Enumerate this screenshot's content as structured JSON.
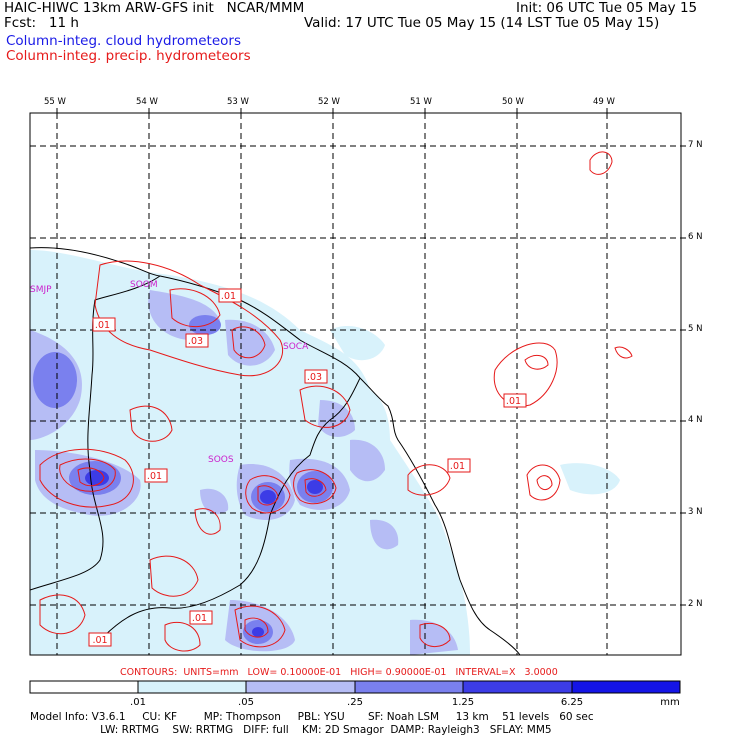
{
  "header": {
    "left_line1": "HAIC-HIWC 13km ARW-GFS init   NCAR/MMM",
    "left_line2": "Fcst:   11 h",
    "right_line1": "Init: 06 UTC Tue 05 May 15",
    "right_line2": "Valid: 17 UTC Tue 05 May 15 (14 LST Tue 05 May 15)",
    "legend_blue": "Column-integ. cloud hydrometeors",
    "legend_red": "Column-integ. precip. hydrometeors"
  },
  "colors": {
    "cloud_blue": "#1a1ae6",
    "precip_red": "#e61a1a",
    "fill_levels": [
      "#ffffff",
      "#d8f2fb",
      "#b6bdf5",
      "#7a80ee",
      "#3c3ce6",
      "#1414e6"
    ]
  },
  "map": {
    "lon_labels": [
      "55 W",
      "54 W",
      "53 W",
      "52 W",
      "51 W",
      "50 W",
      "49 W"
    ],
    "lat_labels": [
      "7 N",
      "6 N",
      "5 N",
      "4 N",
      "3 N",
      "2 N"
    ],
    "stations": [
      "SMJP",
      "SOOM",
      "SOCA",
      "SOOS"
    ],
    "contour_labels": [
      ".01",
      ".01",
      ".03",
      ".03",
      ".01",
      ".01",
      ".01",
      ".01",
      ".01"
    ]
  },
  "contours_info": "CONTOURS:  UNITS=mm   LOW= 0.10000E-01   HIGH= 0.90000E-01   INTERVAL=X   3.0000",
  "colorbar": {
    "labels": [
      ".01",
      ".05",
      ".25",
      "1.25",
      "6.25"
    ],
    "units": "mm"
  },
  "footer": {
    "line1": "Model Info: V3.6.1     CU: KF        MP: Thompson     PBL: YSU       SF: Noah LSM     13 km    51 levels   60 sec",
    "line2": "                     LW: RRTMG    SW: RRTMG   DIFF: full    KM: 2D Smagor  DAMP: Rayleigh3   SFLAY: MM5"
  }
}
